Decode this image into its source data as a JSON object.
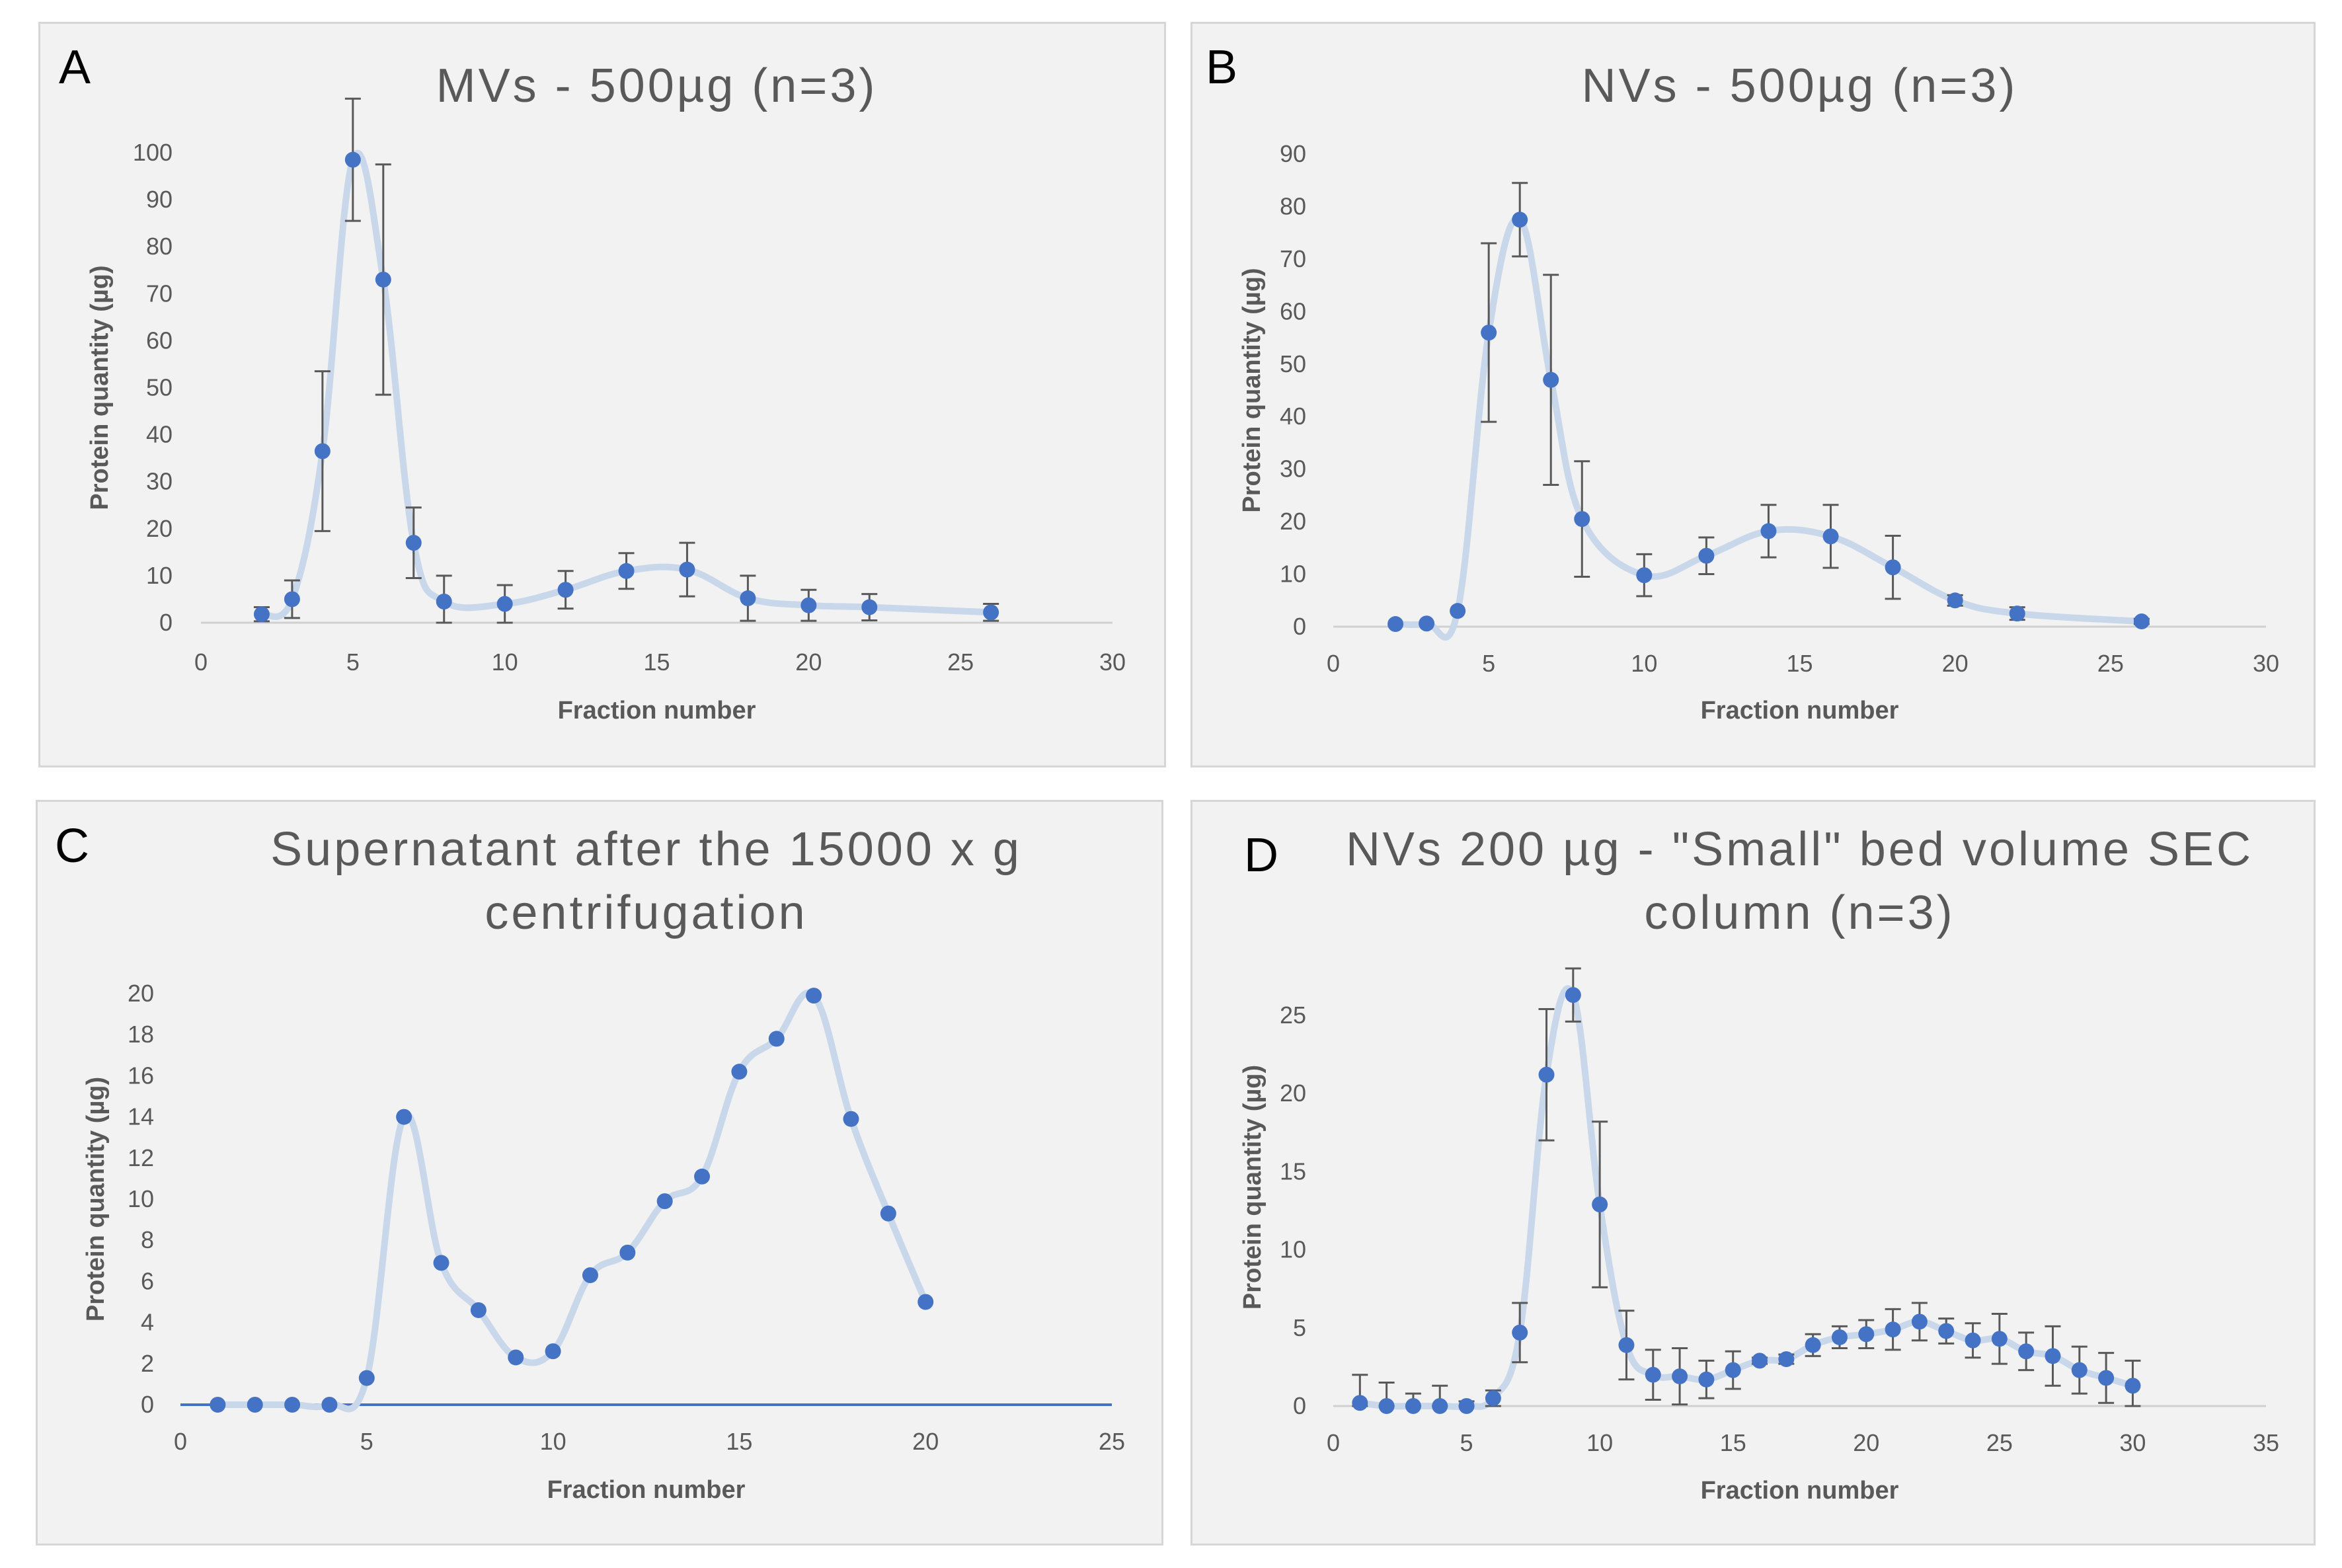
{
  "colors": {
    "marker": "#4472c4",
    "line": "#c9d7eb",
    "error_bar": "#595959",
    "axis": "#d0d0d0",
    "baseline_c": "#4472c4",
    "text": "#595959",
    "background": "#f2f2f2"
  },
  "chart_data": [
    {
      "panel": "A",
      "type": "line",
      "title": [
        "MVs - 500µg (n=3)"
      ],
      "xlabel": "Fraction number",
      "ylabel": "Protein quantity (µg)",
      "xlim": [
        0,
        30
      ],
      "ylim": [
        0,
        100
      ],
      "x_ticks": [
        0,
        5,
        10,
        15,
        20,
        25,
        30
      ],
      "y_ticks": [
        0,
        10,
        20,
        30,
        40,
        50,
        60,
        70,
        80,
        90,
        100
      ],
      "x": [
        2,
        3,
        4,
        5,
        6,
        7,
        8,
        10,
        12,
        14,
        16,
        18,
        20,
        22,
        26
      ],
      "values": [
        1.8,
        5,
        36.5,
        98.5,
        73,
        17,
        4.5,
        4,
        7,
        11,
        11.3,
        5.2,
        3.7,
        3.3,
        2.2
      ],
      "error": [
        1.5,
        4,
        17,
        13,
        24.5,
        7.5,
        5.5,
        4,
        4,
        3.8,
        5.7,
        4.8,
        3.3,
        2.8,
        1.8
      ]
    },
    {
      "panel": "B",
      "type": "line",
      "title": [
        "NVs - 500µg (n=3)"
      ],
      "xlabel": "Fraction number",
      "ylabel": "Protein quantity (µg)",
      "xlim": [
        0,
        30
      ],
      "ylim": [
        0,
        90
      ],
      "x_ticks": [
        0,
        5,
        10,
        15,
        20,
        25,
        30
      ],
      "y_ticks": [
        0,
        10,
        20,
        30,
        40,
        50,
        60,
        70,
        80,
        90
      ],
      "x": [
        2,
        3,
        4,
        5,
        6,
        7,
        8,
        10,
        12,
        14,
        16,
        18,
        20,
        22,
        26
      ],
      "values": [
        0.5,
        0.6,
        3,
        56,
        77.5,
        47,
        20.5,
        9.8,
        13.5,
        18.2,
        17.2,
        11.3,
        5,
        2.5,
        1
      ],
      "error": [
        0,
        0,
        0,
        17,
        7,
        20,
        11,
        4,
        3.5,
        5,
        6,
        6,
        1,
        1.2,
        0.5
      ]
    },
    {
      "panel": "C",
      "type": "line",
      "title": [
        "Supernatant after the 15000 x g",
        "centrifugation"
      ],
      "xlabel": "Fraction number",
      "ylabel": "Protein quantity (µg)",
      "xlim": [
        0,
        25
      ],
      "ylim": [
        0,
        20
      ],
      "x_ticks": [
        0,
        5,
        10,
        15,
        20,
        25
      ],
      "y_ticks": [
        0,
        2,
        4,
        6,
        8,
        10,
        12,
        14,
        16,
        18,
        20
      ],
      "x": [
        1,
        2,
        3,
        4,
        5,
        6,
        7,
        8,
        9,
        10,
        11,
        12,
        13,
        14,
        15,
        16,
        17,
        18,
        19,
        20
      ],
      "values": [
        0,
        0,
        0,
        0,
        1.3,
        14,
        6.9,
        4.6,
        2.3,
        2.6,
        6.3,
        7.4,
        9.9,
        11.1,
        16.2,
        17.8,
        19.9,
        13.9,
        9.3,
        5
      ]
    },
    {
      "panel": "D",
      "type": "line",
      "title": [
        "NVs 200 µg - \"Small\" bed volume SEC",
        "column (n=3)"
      ],
      "xlabel": "Fraction number",
      "ylabel": "Protein quantity (µg)",
      "xlim": [
        0,
        35
      ],
      "ylim": [
        0,
        28
      ],
      "x_ticks": [
        0,
        5,
        10,
        15,
        20,
        25,
        30,
        35
      ],
      "y_ticks": [
        0,
        5,
        10,
        15,
        20,
        25
      ],
      "x": [
        1,
        2,
        3,
        4,
        5,
        6,
        7,
        8,
        9,
        10,
        11,
        12,
        13,
        14,
        15,
        16,
        17,
        18,
        19,
        20,
        21,
        22,
        23,
        24,
        25,
        26,
        27,
        28,
        29,
        30
      ],
      "values": [
        0.2,
        0,
        0,
        0,
        0,
        0.5,
        4.7,
        21.2,
        26.3,
        12.9,
        3.9,
        2,
        1.9,
        1.7,
        2.3,
        2.9,
        3,
        3.9,
        4.4,
        4.6,
        4.9,
        5.4,
        4.8,
        4.2,
        4.3,
        3.5,
        3.2,
        2.3,
        1.8,
        1.3
      ],
      "error": [
        1.8,
        1.5,
        0.8,
        1.3,
        0.3,
        0.5,
        1.9,
        4.2,
        1.7,
        5.3,
        2.2,
        1.6,
        1.8,
        1.2,
        1.2,
        0.2,
        0.3,
        0.7,
        0.7,
        0.9,
        1.3,
        1.2,
        0.8,
        1.1,
        1.6,
        1.2,
        1.9,
        1.5,
        1.6,
        1.6
      ]
    }
  ]
}
